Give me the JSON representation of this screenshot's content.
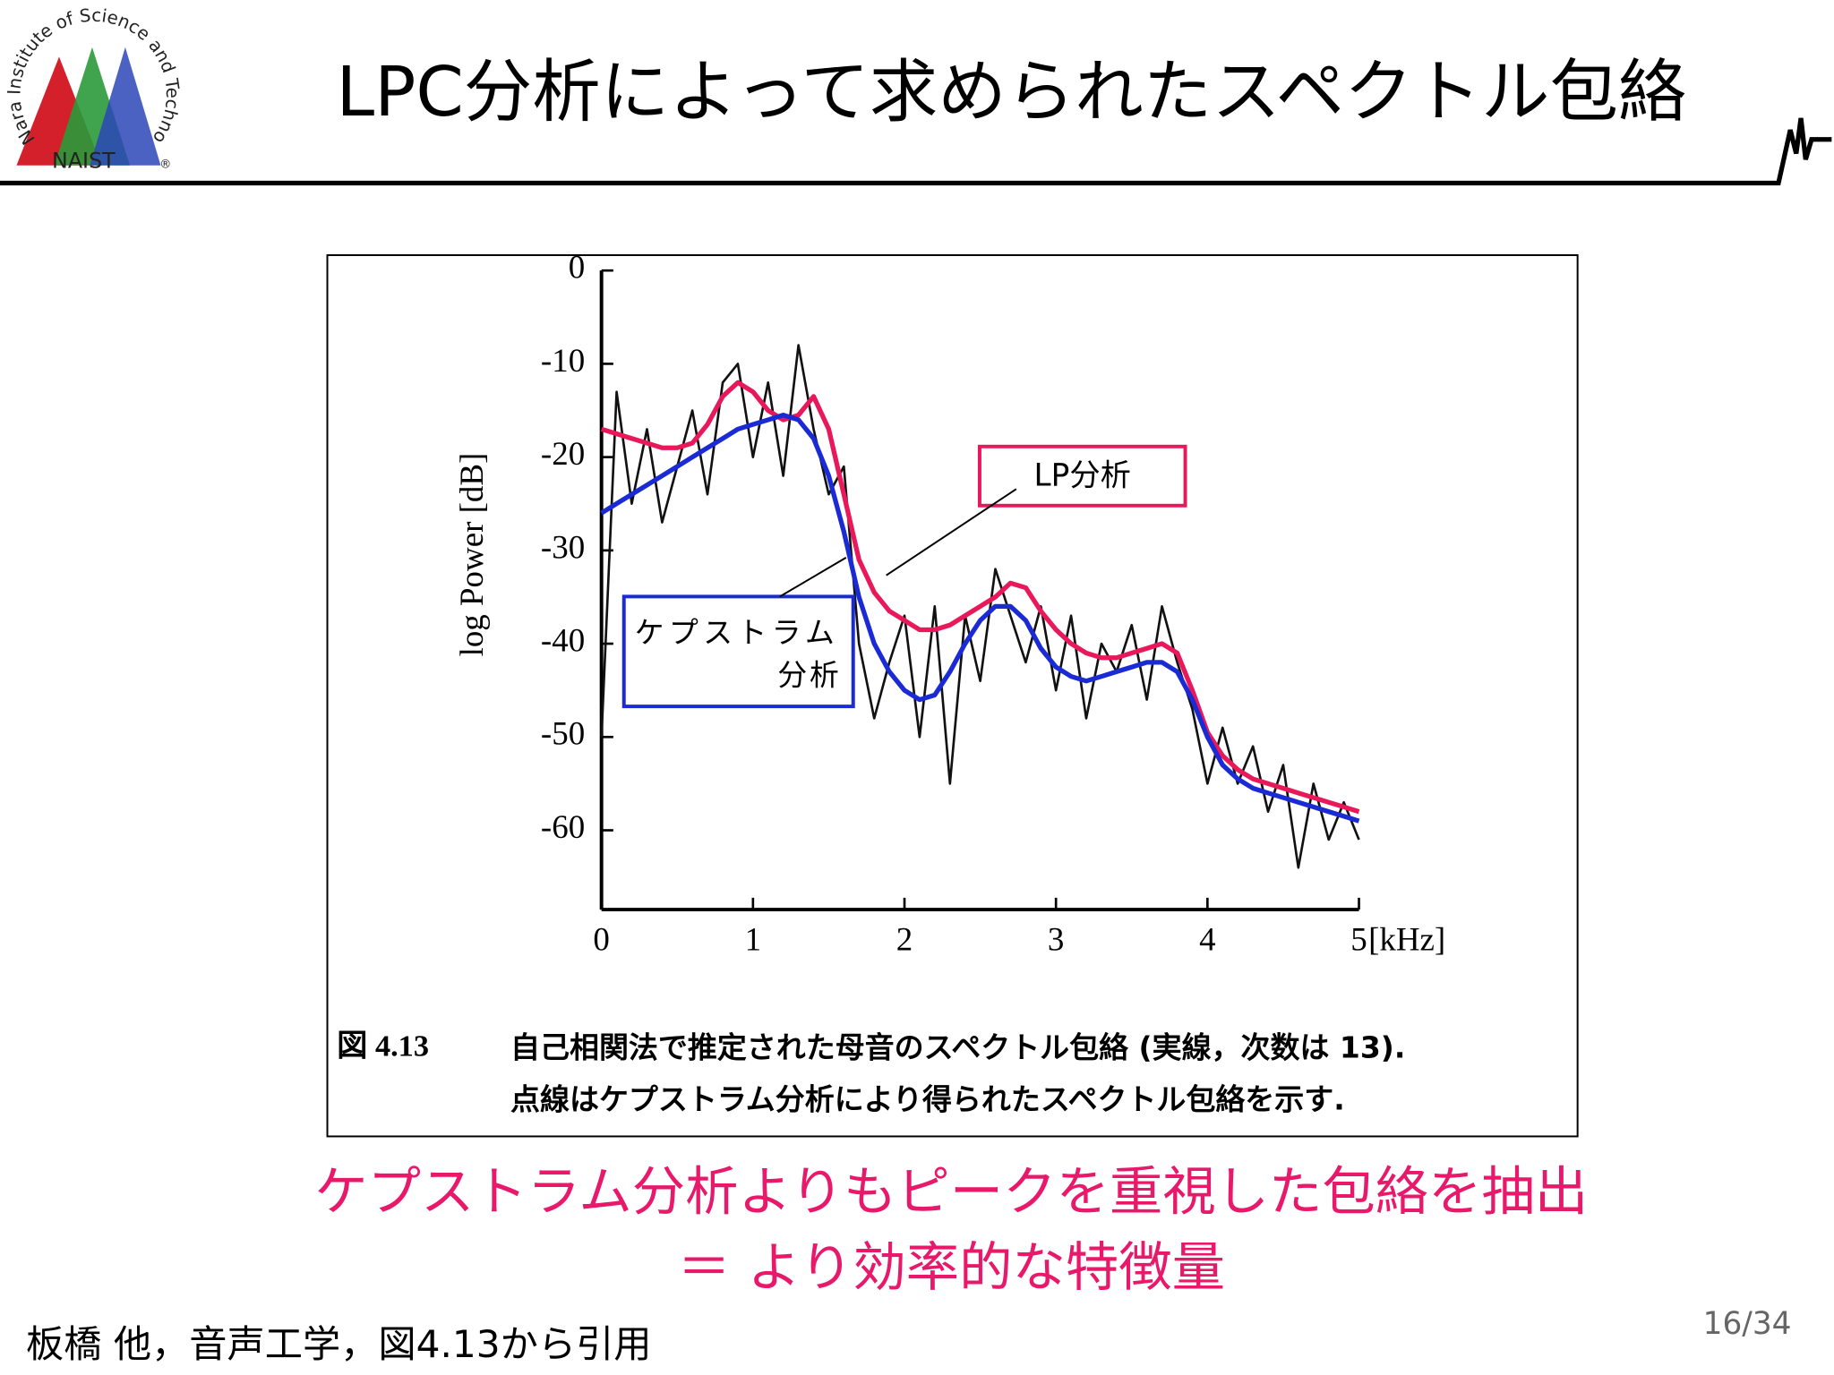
{
  "logo": {
    "ring": "Nara Institute of Science and Technology",
    "name": "NAIST",
    "mark": "®"
  },
  "title": "LPC分析によって求められたスペクトル包絡",
  "chart_data": {
    "type": "line",
    "ylabel": "log Power [dB]",
    "xunit": "[kHz]",
    "x": [
      0,
      0.1,
      0.2,
      0.3,
      0.4,
      0.5,
      0.6,
      0.7,
      0.8,
      0.9,
      1,
      1.1,
      1.2,
      1.3,
      1.4,
      1.5,
      1.6,
      1.7,
      1.8,
      1.9,
      2,
      2.1,
      2.2,
      2.3,
      2.4,
      2.5,
      2.6,
      2.7,
      2.8,
      2.9,
      3,
      3.1,
      3.2,
      3.3,
      3.4,
      3.5,
      3.6,
      3.7,
      3.8,
      3.9,
      4,
      4.1,
      4.2,
      4.3,
      4.4,
      4.5,
      4.6,
      4.7,
      4.8,
      4.9,
      5
    ],
    "xlim": [
      0,
      5
    ],
    "xticks": [
      0,
      1,
      2,
      3,
      4,
      5
    ],
    "ylim": [
      -68.5,
      0
    ],
    "yticks": [
      0,
      -10,
      -20,
      -30,
      -40,
      -50,
      -60
    ],
    "series": [
      {
        "color": "#111111",
        "values": [
          -50,
          -13,
          -25,
          -17,
          -27,
          -21,
          -15,
          -24,
          -12,
          -10,
          -20,
          -12,
          -22,
          -8,
          -17,
          -24,
          -21,
          -40,
          -48,
          -42,
          -37,
          -50,
          -36,
          -55,
          -37,
          -44,
          -32,
          -37,
          -42,
          -36,
          -45,
          -37,
          -48,
          -40,
          -43,
          -38,
          -46,
          -36,
          -42,
          -47,
          -55,
          -49,
          -55,
          -51,
          -58,
          -53,
          -64,
          -55,
          -61,
          -57,
          -61
        ]
      },
      {
        "color": "#e8185a",
        "values": [
          -17,
          -17.5,
          -18,
          -18.5,
          -19,
          -19,
          -18.5,
          -16.5,
          -13.5,
          -12,
          -13,
          -15,
          -16,
          -15.5,
          -13.5,
          -17,
          -24,
          -31,
          -34.5,
          -36.5,
          -37.5,
          -38.5,
          -38.5,
          -38,
          -37,
          -36,
          -35,
          -33.5,
          -34,
          -36.5,
          -38.5,
          -40,
          -41,
          -41.5,
          -41.5,
          -41,
          -40.5,
          -40,
          -41,
          -45,
          -49.5,
          -52,
          -53.5,
          -54.5,
          -55,
          -55.5,
          -56,
          -56.5,
          -57,
          -57.5,
          -58
        ]
      },
      {
        "color": "#1a2bd6",
        "values": [
          -26,
          -25,
          -24,
          -23,
          -22,
          -21,
          -20,
          -19,
          -18,
          -17,
          -16.5,
          -16,
          -15.5,
          -16,
          -18,
          -22,
          -28,
          -35,
          -40,
          -43,
          -45,
          -46,
          -45.5,
          -43,
          -40,
          -37.5,
          -36,
          -36,
          -37.5,
          -40.5,
          -42.5,
          -43.5,
          -44,
          -43.5,
          -43,
          -42.5,
          -42,
          -42,
          -43,
          -46,
          -50,
          -53,
          -54.5,
          -55.5,
          -56,
          -56.5,
          -57,
          -57.5,
          -58,
          -58.5,
          -59
        ]
      }
    ],
    "annotations": [
      {
        "text": "LP分析"
      },
      {
        "lines": [
          "ケプストラム",
          "分析"
        ]
      }
    ]
  },
  "caption": {
    "label": "図 4.13",
    "lines": [
      "自己相関法で推定された母音のスペクトル包絡 (実線，次数は 13).",
      "点線はケプストラム分析により得られたスペクトル包絡を示す."
    ]
  },
  "highlight": [
    "ケプストラム分析よりもピークを重視した包絡を抽出",
    "＝ より効率的な特徴量"
  ],
  "citation": "板橋 他，音声工学，図4.13から引用",
  "page": "16/34"
}
